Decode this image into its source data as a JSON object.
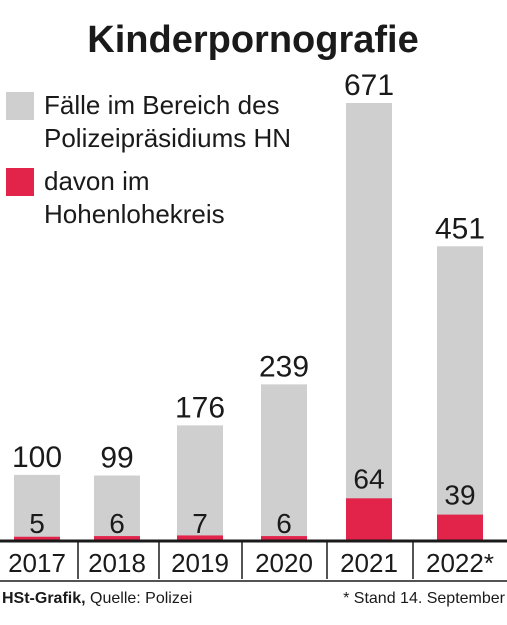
{
  "chart_data": {
    "type": "bar",
    "title": "Kinderpornografie",
    "categories": [
      "2017",
      "2018",
      "2019",
      "2020",
      "2021",
      "2022*"
    ],
    "series": [
      {
        "name": "Fälle im Bereich des Polizeipräsidiums HN",
        "values": [
          100,
          99,
          176,
          239,
          671,
          451
        ],
        "color": "#cfcfcf"
      },
      {
        "name": "davon im Hohenlohekreis",
        "values": [
          5,
          6,
          7,
          6,
          64,
          39
        ],
        "color": "#e2234a"
      }
    ],
    "legend": {
      "placement": "top-left",
      "entries": [
        {
          "lines": [
            "Fälle im Bereich des",
            "Polizeipräsidiums HN"
          ],
          "color": "#cfcfcf"
        },
        {
          "lines": [
            "davon im",
            "Hohenlohekreis"
          ],
          "color": "#e2234a"
        }
      ]
    },
    "ylim": [
      0,
      671
    ],
    "grid": false,
    "xlabel": "",
    "ylabel": ""
  },
  "footer": {
    "credit_bold": "HSt-Grafik,",
    "credit": " Quelle: Polizei",
    "note": "* Stand 14. September"
  }
}
